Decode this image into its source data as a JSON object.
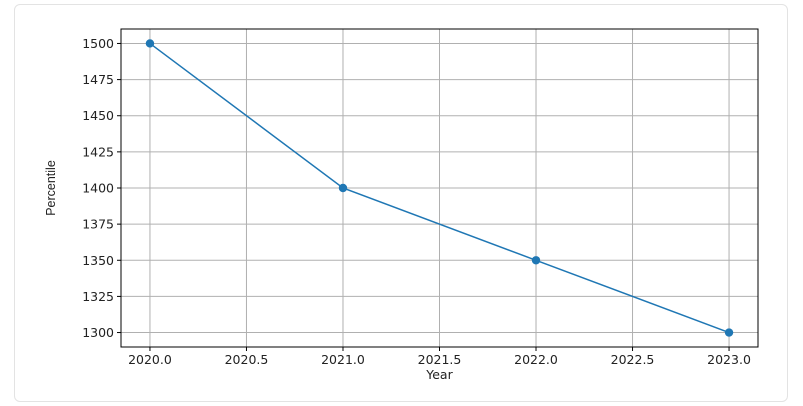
{
  "chart_data": {
    "type": "line",
    "xlabel": "Year",
    "ylabel": "Percentile",
    "x": [
      2020.0,
      2021.0,
      2022.0,
      2023.0
    ],
    "series": [
      {
        "values": [
          1500,
          1400,
          1350,
          1300
        ],
        "color": "#1f77b4",
        "marker": "circle"
      }
    ],
    "xlim": [
      2019.85,
      2023.15
    ],
    "ylim": [
      1290,
      1510
    ],
    "xticks": [
      "2020.0",
      "2020.5",
      "2021.0",
      "2021.5",
      "2022.0",
      "2022.5",
      "2023.0"
    ],
    "yticks": [
      "1300",
      "1325",
      "1350",
      "1375",
      "1400",
      "1425",
      "1450",
      "1475",
      "1500"
    ],
    "grid": true,
    "colors": {
      "line": "#1f77b4",
      "grid": "#b0b0b0",
      "axis": "#000000"
    }
  }
}
